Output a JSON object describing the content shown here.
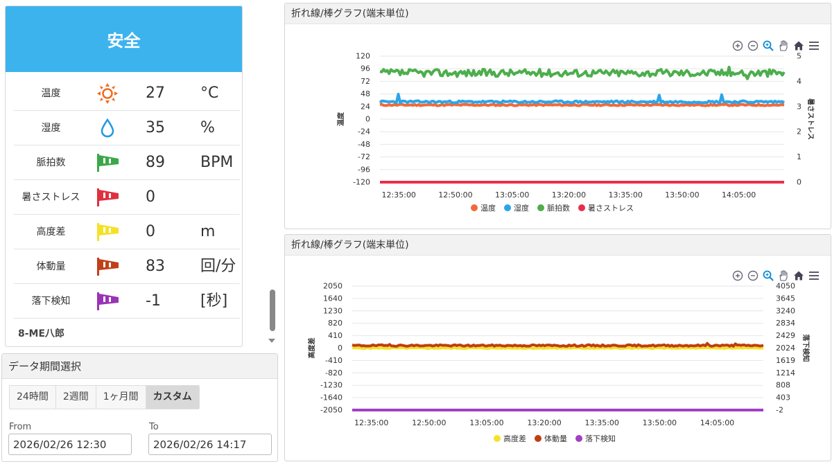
{
  "status": {
    "label": "安全",
    "color": "#3db3ee"
  },
  "metrics": [
    {
      "label": "温度",
      "value": "27",
      "unit": "°C",
      "icon": "sun-icon",
      "color": "#f06a1c"
    },
    {
      "label": "湿度",
      "value": "35",
      "unit": "%",
      "icon": "water-drop-icon",
      "color": "#2399e5"
    },
    {
      "label": "脈拍数",
      "value": "89",
      "unit": "BPM",
      "icon": "flag-icon",
      "color": "#3aa84a"
    },
    {
      "label": "暑さストレス",
      "value": "0",
      "unit": "",
      "icon": "flag-icon",
      "color": "#e0303e"
    },
    {
      "label": "高度差",
      "value": "0",
      "unit": "m",
      "icon": "flag-icon",
      "color": "#f4e22a"
    },
    {
      "label": "体動量",
      "value": "83",
      "unit": "回/分",
      "icon": "flag-icon",
      "color": "#c0401a"
    },
    {
      "label": "落下検知",
      "value": "-1",
      "unit": "[秒]",
      "icon": "flag-icon",
      "color": "#9b33b5"
    }
  ],
  "user": {
    "name": "8-ME八郎"
  },
  "period": {
    "title": "データ期間選択",
    "buttons": [
      "24時間",
      "2週間",
      "1ヶ月間",
      "カスタム"
    ],
    "active": "カスタム",
    "from_label": "From",
    "to_label": "To",
    "from_value": "2026/02/26 12:30",
    "to_value": "2026/02/26 14:17"
  },
  "charts": [
    {
      "title": "折れ線/棒グラフ(端末単位)"
    },
    {
      "title": "折れ線/棒グラフ(端末単位)"
    }
  ],
  "chart_data": [
    {
      "type": "line",
      "x_ticks": [
        "12:35:00",
        "12:50:00",
        "13:05:00",
        "13:20:00",
        "13:35:00",
        "13:50:00",
        "14:05:00"
      ],
      "x_range": [
        "12:30",
        "14:17"
      ],
      "ylabel": "温度",
      "ylabel2": "暑さストレス",
      "y_ticks": [
        120,
        96,
        72,
        48,
        24,
        0,
        -24,
        -48,
        -72,
        -96,
        -120
      ],
      "y2_ticks": [
        5,
        4,
        3,
        2,
        1,
        0
      ],
      "ylim": [
        -120,
        120
      ],
      "y2lim": [
        0,
        5
      ],
      "grid": true,
      "legend_position": "bottom",
      "series": [
        {
          "name": "温度",
          "color": "#f06a3a",
          "axis": "left",
          "approx": 27
        },
        {
          "name": "湿度",
          "color": "#2ba5ea",
          "axis": "left",
          "approx": 33
        },
        {
          "name": "脈拍数",
          "color": "#4cae4c",
          "axis": "left",
          "approx": 88
        },
        {
          "name": "暑さストレス",
          "color": "#e8304a",
          "axis": "right",
          "approx": 0
        }
      ]
    },
    {
      "type": "line",
      "x_ticks": [
        "12:35:00",
        "12:50:00",
        "13:05:00",
        "13:20:00",
        "13:35:00",
        "13:50:00",
        "14:05:00"
      ],
      "x_range": [
        "12:30",
        "14:17"
      ],
      "ylabel": "高度差",
      "ylabel2": "落下検知",
      "y_ticks": [
        2050,
        1640,
        1230,
        820,
        410,
        0,
        -410,
        -820,
        -1230,
        -1640,
        -2050
      ],
      "y2_ticks": [
        4050,
        3645,
        3240,
        2834,
        2429,
        2024,
        1619,
        1214,
        808,
        403,
        -2
      ],
      "ylim": [
        -2050,
        2050
      ],
      "y2lim": [
        -2,
        4050
      ],
      "grid": true,
      "legend_position": "bottom",
      "series": [
        {
          "name": "高度差",
          "color": "#f4e22a",
          "axis": "left",
          "approx": 0
        },
        {
          "name": "体動量",
          "color": "#bf3e10",
          "axis": "left",
          "approx": 83
        },
        {
          "name": "落下検知",
          "color": "#a33fc4",
          "axis": "right",
          "approx": -2
        }
      ]
    }
  ]
}
